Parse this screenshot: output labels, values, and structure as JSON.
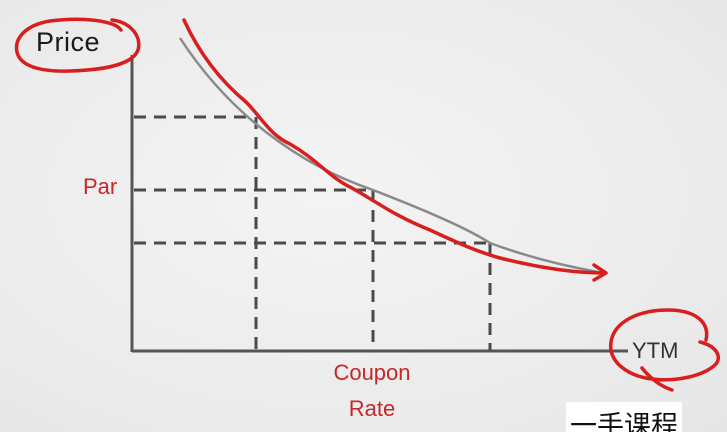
{
  "diagram": {
    "y_axis_label": "Price",
    "x_axis_label": "YTM",
    "par_label": "Par",
    "coupon_rate_label": "Coupon\nRate",
    "watermark_text": "一手课程"
  },
  "colors": {
    "axis": "#555555",
    "curve": "#8a8a8a",
    "annotation": "#d81e1e",
    "guide": "#4a4a4a"
  },
  "icons": {
    "y_axis_circle": "hand-drawn-circle-icon",
    "x_axis_circle": "hand-drawn-circle-icon",
    "curve_arrow": "arrowhead-icon"
  }
}
